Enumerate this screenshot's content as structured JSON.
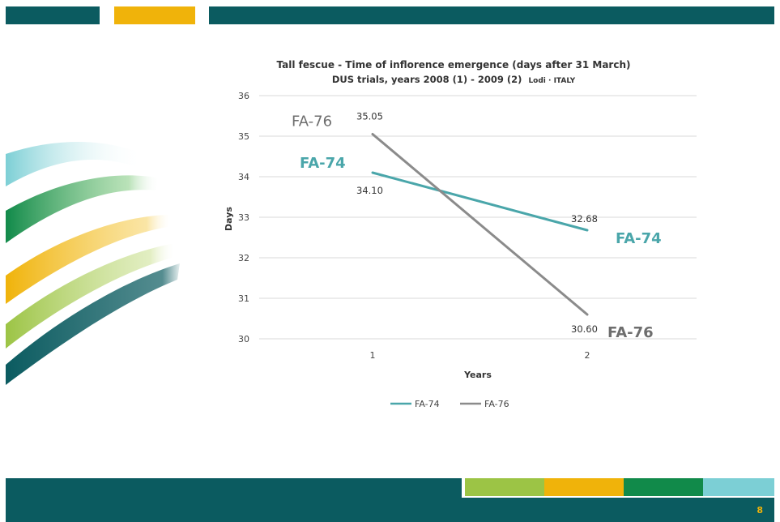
{
  "slide": {
    "page_number": "8",
    "colors": {
      "teal_dark": "#0b5b60",
      "gold": "#f0b30a",
      "green_light": "#9cc445",
      "green_dark": "#118a4a",
      "cyan_light": "#7ccfd5",
      "fa74_line": "#4aa6aa",
      "fa76_line": "#8b8b8b"
    }
  },
  "chart_data": {
    "type": "line",
    "title": "Tall fescue - Time of inflorence emergence (days after 31 March)",
    "subtitle": "DUS trials,  years  2008 (1) -  2009 (2)",
    "subtitle_location": "Lodi · ITALY",
    "xlabel": "Years",
    "ylabel": "Days",
    "categories": [
      "1",
      "2"
    ],
    "ylim": [
      30,
      36
    ],
    "yticks": [
      "30",
      "31",
      "32",
      "33",
      "34",
      "35",
      "36"
    ],
    "grid": true,
    "legend_position": "bottom",
    "series": [
      {
        "name": "FA-74",
        "values": [
          34.1,
          32.68
        ],
        "labels": [
          "34.10",
          "32.68"
        ],
        "color": "#4aa6aa"
      },
      {
        "name": "FA-76",
        "values": [
          35.05,
          30.6
        ],
        "labels": [
          "35.05",
          "30.60"
        ],
        "color": "#8b8b8b"
      }
    ],
    "annotations": [
      {
        "text": "FA-76",
        "series": "FA-76",
        "at": "1"
      },
      {
        "text": "FA-74",
        "series": "FA-74",
        "at": "1"
      },
      {
        "text": "FA-74",
        "series": "FA-74",
        "at": "2"
      },
      {
        "text": "FA-76",
        "series": "FA-76",
        "at": "2"
      }
    ]
  }
}
